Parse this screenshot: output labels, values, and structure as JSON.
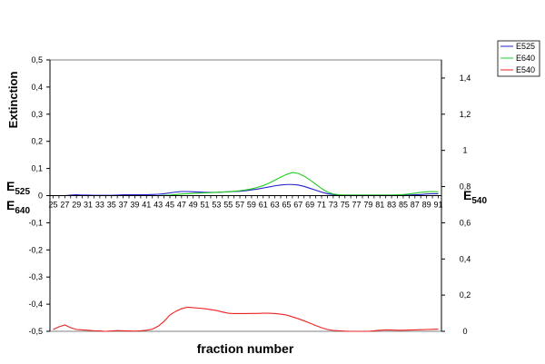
{
  "chart_data": {
    "type": "line",
    "ylabel_top": "Extinction",
    "xlabel": "fraction number",
    "left_label_upper": {
      "base": "E",
      "sub": "525"
    },
    "left_label_lower": {
      "base": "E",
      "sub": "640"
    },
    "right_label": {
      "base": "E",
      "sub": "540"
    },
    "ylim_left": [
      -0.5,
      0.5
    ],
    "ylim_right": [
      0,
      1.5
    ],
    "left_ticks": [
      "0,5",
      "0,4",
      "0,3",
      "0,2",
      "0,1",
      "0",
      "-0,1",
      "-0,2",
      "-0,3",
      "-0,4",
      "-0,5"
    ],
    "right_ticks": [
      "1,4",
      "1,2",
      "1",
      "0,8",
      "0,6",
      "0,4",
      "0,2",
      "0"
    ],
    "x_labels": [
      "25",
      "27",
      "29",
      "31",
      "33",
      "35",
      "37",
      "39",
      "41",
      "43",
      "45",
      "47",
      "49",
      "51",
      "53",
      "55",
      "57",
      "59",
      "61",
      "63",
      "65",
      "67",
      "69",
      "71",
      "73",
      "75",
      "77",
      "79",
      "81",
      "83",
      "85",
      "87",
      "89",
      "91"
    ],
    "x": [
      25,
      26,
      27,
      28,
      29,
      30,
      31,
      32,
      33,
      34,
      35,
      36,
      37,
      38,
      39,
      40,
      41,
      42,
      43,
      44,
      45,
      46,
      47,
      48,
      49,
      50,
      51,
      52,
      53,
      54,
      55,
      56,
      57,
      58,
      59,
      60,
      61,
      62,
      63,
      64,
      65,
      66,
      67,
      68,
      69,
      70,
      71,
      72,
      73,
      74,
      75,
      76,
      77,
      78,
      79,
      80,
      81,
      82,
      83,
      84,
      85,
      86,
      87,
      88,
      89,
      90,
      91
    ],
    "legend_position": "top-right",
    "series": [
      {
        "name": "E525",
        "color": "#2222cc",
        "axis": "left",
        "values": [
          0,
          0,
          0,
          0.002,
          0.003,
          0.002,
          0.002,
          0.001,
          0.001,
          0.001,
          0.001,
          0.002,
          0.003,
          0.003,
          0.003,
          0.003,
          0.003,
          0.004,
          0.005,
          0.007,
          0.01,
          0.013,
          0.015,
          0.015,
          0.014,
          0.013,
          0.012,
          0.012,
          0.012,
          0.013,
          0.014,
          0.015,
          0.016,
          0.018,
          0.021,
          0.024,
          0.028,
          0.032,
          0.036,
          0.039,
          0.041,
          0.041,
          0.039,
          0.034,
          0.027,
          0.02,
          0.013,
          0.007,
          0.004,
          0.002,
          0.002,
          0.002,
          0.002,
          0.002,
          0.002,
          0.002,
          0.002,
          0.002,
          0.002,
          0.002,
          0.002,
          0.002,
          0.003,
          0.004,
          0.006,
          0.007,
          0.007
        ]
      },
      {
        "name": "E640",
        "color": "#22cc22",
        "axis": "left",
        "values": [
          0,
          0,
          0,
          0,
          0,
          0,
          0,
          0,
          0,
          0,
          0,
          0,
          0,
          0,
          0,
          0,
          0,
          0,
          0,
          0.001,
          0.002,
          0.004,
          0.006,
          0.007,
          0.008,
          0.009,
          0.01,
          0.011,
          0.012,
          0.013,
          0.014,
          0.016,
          0.018,
          0.021,
          0.025,
          0.03,
          0.037,
          0.046,
          0.057,
          0.068,
          0.078,
          0.085,
          0.082,
          0.072,
          0.058,
          0.042,
          0.026,
          0.013,
          0.006,
          0.003,
          0.002,
          0.002,
          0.002,
          0.002,
          0.002,
          0.002,
          0.002,
          0.002,
          0.002,
          0.003,
          0.004,
          0.006,
          0.009,
          0.012,
          0.014,
          0.015,
          0.014
        ]
      },
      {
        "name": "E540",
        "color": "#ee2222",
        "axis": "right",
        "values": [
          0.01,
          0.025,
          0.035,
          0.02,
          0.01,
          0.008,
          0.006,
          0.003,
          0.002,
          0,
          0.002,
          0.004,
          0.003,
          0.002,
          0.001,
          0.003,
          0.006,
          0.012,
          0.028,
          0.055,
          0.09,
          0.11,
          0.125,
          0.133,
          0.131,
          0.128,
          0.125,
          0.12,
          0.115,
          0.107,
          0.1,
          0.098,
          0.098,
          0.098,
          0.099,
          0.099,
          0.1,
          0.1,
          0.098,
          0.095,
          0.09,
          0.08,
          0.07,
          0.058,
          0.045,
          0.032,
          0.02,
          0.01,
          0.005,
          0.003,
          0.001,
          0,
          0,
          0,
          0,
          0.003,
          0.006,
          0.008,
          0.007,
          0.006,
          0.006,
          0.007,
          0.008,
          0.009,
          0.01,
          0.011,
          0.012
        ]
      }
    ]
  }
}
